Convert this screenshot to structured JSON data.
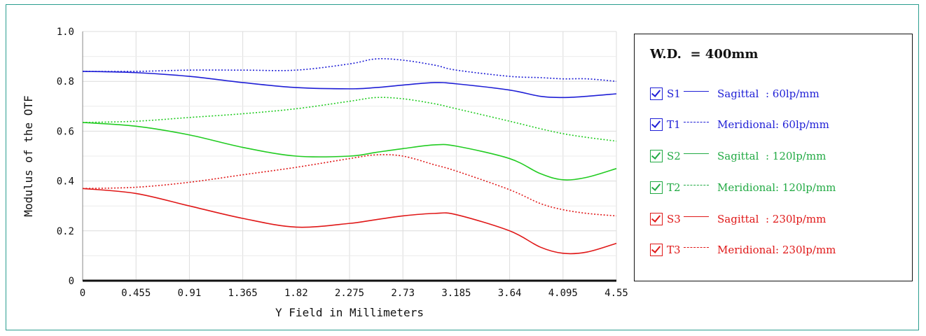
{
  "colors": {
    "blue": "#1f1fd6",
    "green": "#22cc22",
    "red": "#e01818",
    "frame": "#2a9d8f"
  },
  "legend": {
    "title": "W.D.  = 400mm",
    "items": [
      {
        "check_icon": "checkbox-checked-icon",
        "code": "S1",
        "style": "solid",
        "text": "Sagittal  : 60lp/mm",
        "color": "#1f1fd6"
      },
      {
        "check_icon": "checkbox-checked-icon",
        "code": "T1",
        "style": "dashed",
        "text": "Meridional: 60lp/mm",
        "color": "#1f1fd6"
      },
      {
        "check_icon": "checkbox-checked-icon",
        "code": "S2",
        "style": "solid",
        "text": "Sagittal  : 120lp/mm",
        "color": "#22aa44"
      },
      {
        "check_icon": "checkbox-checked-icon",
        "code": "T2",
        "style": "dashed",
        "text": "Meridional: 120lp/mm",
        "color": "#22aa44"
      },
      {
        "check_icon": "checkbox-checked-icon",
        "code": "S3",
        "style": "solid",
        "text": "Sagittal  : 230lp/mm",
        "color": "#e01818"
      },
      {
        "check_icon": "checkbox-checked-icon",
        "code": "T3",
        "style": "dashed",
        "text": "Meridional: 230lp/mm",
        "color": "#e01818"
      }
    ]
  },
  "chart_data": {
    "type": "line",
    "xlabel": "Y Field in Millimeters",
    "ylabel": "Modulus of the OTF",
    "xlim": [
      0,
      4.55
    ],
    "ylim": [
      0,
      1.0
    ],
    "x_ticks": [
      "0",
      "0.455",
      "0.91",
      "1.365",
      "1.82",
      "2.275",
      "2.73",
      "3.185",
      "3.64",
      "4.095",
      "4.55"
    ],
    "y_ticks": [
      "0",
      "0.2",
      "0.4",
      "0.6",
      "0.8",
      "1.0"
    ],
    "grid": true,
    "x": [
      0,
      0.455,
      0.91,
      1.365,
      1.82,
      2.275,
      2.5,
      2.73,
      3.0,
      3.185,
      3.64,
      3.9,
      4.095,
      4.3,
      4.55
    ],
    "series": [
      {
        "name": "S1",
        "color": "#1f1fd6",
        "style": "solid",
        "values": [
          0.84,
          0.835,
          0.82,
          0.795,
          0.775,
          0.77,
          0.775,
          0.785,
          0.795,
          0.79,
          0.765,
          0.74,
          0.735,
          0.74,
          0.75
        ]
      },
      {
        "name": "T1",
        "color": "#1f1fd6",
        "style": "dotted",
        "values": [
          0.84,
          0.84,
          0.845,
          0.845,
          0.845,
          0.87,
          0.89,
          0.885,
          0.865,
          0.845,
          0.82,
          0.815,
          0.81,
          0.81,
          0.8
        ]
      },
      {
        "name": "S2",
        "color": "#22cc22",
        "style": "solid",
        "values": [
          0.635,
          0.62,
          0.585,
          0.535,
          0.5,
          0.5,
          0.515,
          0.53,
          0.545,
          0.54,
          0.49,
          0.43,
          0.405,
          0.415,
          0.45
        ]
      },
      {
        "name": "T2",
        "color": "#22cc22",
        "style": "dotted",
        "values": [
          0.635,
          0.64,
          0.655,
          0.67,
          0.69,
          0.72,
          0.735,
          0.73,
          0.71,
          0.69,
          0.64,
          0.61,
          0.59,
          0.575,
          0.56
        ]
      },
      {
        "name": "S3",
        "color": "#e01818",
        "style": "solid",
        "values": [
          0.37,
          0.35,
          0.3,
          0.25,
          0.215,
          0.23,
          0.245,
          0.26,
          0.27,
          0.265,
          0.2,
          0.135,
          0.11,
          0.115,
          0.15
        ]
      },
      {
        "name": "T3",
        "color": "#e01818",
        "style": "dotted",
        "values": [
          0.37,
          0.375,
          0.395,
          0.425,
          0.455,
          0.49,
          0.505,
          0.5,
          0.465,
          0.44,
          0.365,
          0.31,
          0.285,
          0.27,
          0.26
        ]
      }
    ]
  }
}
